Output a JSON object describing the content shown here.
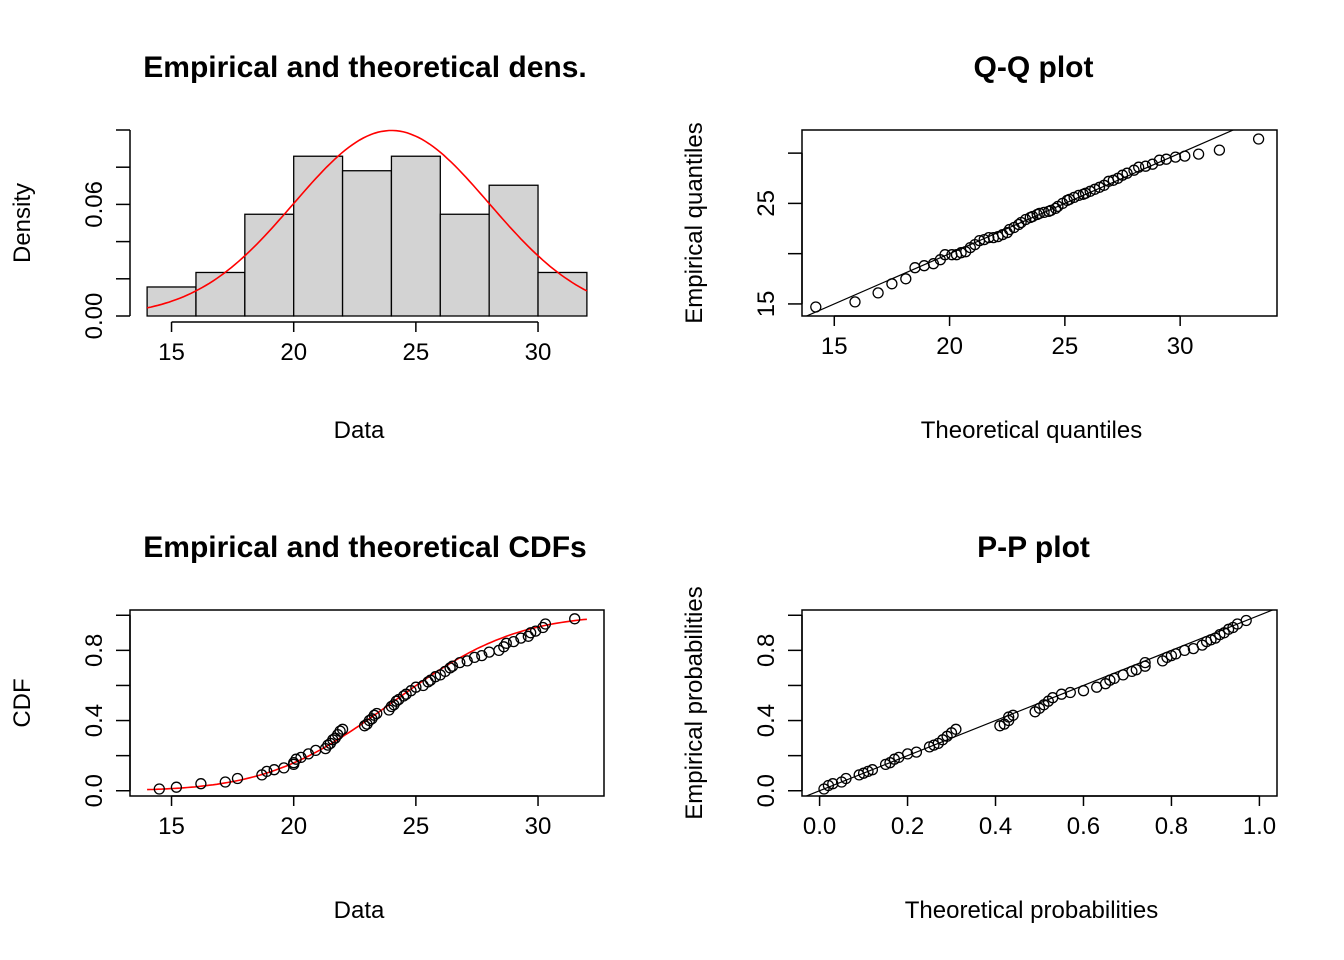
{
  "figure": {
    "title": "",
    "layout": "2x2"
  },
  "chart_data": [
    {
      "id": "hist",
      "type": "bar",
      "title": "Empirical and theoretical dens.",
      "xlabel": "Data",
      "ylabel": "Density",
      "xlim": [
        13.3,
        32.7
      ],
      "ylim": [
        0,
        0.1
      ],
      "xticks": [
        "15",
        "20",
        "25",
        "30"
      ],
      "yticks": [
        "0.00",
        "0.06"
      ],
      "box": false,
      "bar_color": "#d3d3d3",
      "line_color": "#ff0000",
      "bins": [
        {
          "x0": 14,
          "x1": 16,
          "density": 0.0156
        },
        {
          "x0": 16,
          "x1": 18,
          "density": 0.0234
        },
        {
          "x0": 18,
          "x1": 20,
          "density": 0.0547
        },
        {
          "x0": 20,
          "x1": 22,
          "density": 0.0859
        },
        {
          "x0": 22,
          "x1": 24,
          "density": 0.0781
        },
        {
          "x0": 24,
          "x1": 26,
          "density": 0.0859
        },
        {
          "x0": 26,
          "x1": 28,
          "density": 0.0547
        },
        {
          "x0": 28,
          "x1": 30,
          "density": 0.0703
        },
        {
          "x0": 30,
          "x1": 32,
          "density": 0.0234
        }
      ],
      "density_curve": {
        "mean": 24.0,
        "sd": 4.0,
        "from": 14,
        "to": 32
      }
    },
    {
      "id": "qq",
      "type": "scatter",
      "title": "Q-Q plot",
      "xlabel": "Theoretical quantiles",
      "ylabel": "Empirical quantiles",
      "xlim": [
        13.6,
        34.2
      ],
      "ylim": [
        13.8,
        32.3
      ],
      "xticks": [
        "15",
        "20",
        "25",
        "30"
      ],
      "yticks": [
        "15",
        "25"
      ],
      "box": true,
      "reference_line": {
        "slope": 1,
        "intercept": 0
      },
      "points": [
        [
          14.2,
          14.7
        ],
        [
          15.9,
          15.2
        ],
        [
          16.9,
          16.1
        ],
        [
          17.5,
          17.0
        ],
        [
          18.1,
          17.5
        ],
        [
          18.5,
          18.6
        ],
        [
          18.9,
          18.8
        ],
        [
          19.3,
          19.0
        ],
        [
          19.6,
          19.4
        ],
        [
          19.8,
          19.9
        ],
        [
          20.1,
          19.9
        ],
        [
          20.3,
          19.9
        ],
        [
          20.5,
          20.1
        ],
        [
          20.7,
          20.2
        ],
        [
          20.9,
          20.6
        ],
        [
          21.1,
          20.9
        ],
        [
          21.3,
          21.3
        ],
        [
          21.5,
          21.4
        ],
        [
          21.7,
          21.6
        ],
        [
          21.9,
          21.6
        ],
        [
          22.1,
          21.7
        ],
        [
          22.3,
          21.9
        ],
        [
          22.5,
          22.1
        ],
        [
          22.6,
          22.4
        ],
        [
          22.8,
          22.6
        ],
        [
          23.0,
          22.9
        ],
        [
          23.1,
          23.1
        ],
        [
          23.3,
          23.4
        ],
        [
          23.5,
          23.6
        ],
        [
          23.6,
          23.7
        ],
        [
          23.8,
          23.9
        ],
        [
          23.9,
          24.0
        ],
        [
          24.1,
          24.1
        ],
        [
          24.3,
          24.2
        ],
        [
          24.4,
          24.3
        ],
        [
          24.6,
          24.5
        ],
        [
          24.7,
          24.7
        ],
        [
          24.9,
          25.0
        ],
        [
          25.1,
          25.3
        ],
        [
          25.2,
          25.4
        ],
        [
          25.4,
          25.6
        ],
        [
          25.6,
          25.8
        ],
        [
          25.8,
          25.9
        ],
        [
          25.9,
          26.0
        ],
        [
          26.1,
          26.2
        ],
        [
          26.3,
          26.4
        ],
        [
          26.5,
          26.6
        ],
        [
          26.7,
          26.8
        ],
        [
          26.9,
          27.2
        ],
        [
          27.1,
          27.3
        ],
        [
          27.3,
          27.5
        ],
        [
          27.5,
          27.8
        ],
        [
          27.7,
          28.0
        ],
        [
          28.0,
          28.3
        ],
        [
          28.2,
          28.6
        ],
        [
          28.5,
          28.7
        ],
        [
          28.8,
          28.9
        ],
        [
          29.1,
          29.3
        ],
        [
          29.4,
          29.4
        ],
        [
          29.8,
          29.6
        ],
        [
          30.2,
          29.7
        ],
        [
          30.8,
          29.9
        ],
        [
          31.7,
          30.3
        ],
        [
          33.4,
          31.4
        ]
      ]
    },
    {
      "id": "cdf",
      "type": "line",
      "title": "Empirical and theoretical CDFs",
      "xlabel": "Data",
      "ylabel": "CDF",
      "xlim": [
        13.3,
        32.7
      ],
      "ylim": [
        -0.03,
        1.03
      ],
      "xticks": [
        "15",
        "20",
        "25",
        "30"
      ],
      "yticks": [
        "0.0",
        "0.4",
        "0.8"
      ],
      "box": true,
      "line_color": "#ff0000",
      "theoretical": {
        "mean": 24.0,
        "sd": 4.0,
        "from": 14,
        "to": 32
      },
      "points": [
        [
          14.5,
          0.01
        ],
        [
          15.2,
          0.02
        ],
        [
          16.2,
          0.04
        ],
        [
          17.2,
          0.05
        ],
        [
          17.7,
          0.07
        ],
        [
          18.7,
          0.09
        ],
        [
          18.9,
          0.11
        ],
        [
          19.2,
          0.12
        ],
        [
          19.6,
          0.13
        ],
        [
          20.0,
          0.15
        ],
        [
          20.0,
          0.16
        ],
        [
          20.1,
          0.18
        ],
        [
          20.3,
          0.19
        ],
        [
          20.6,
          0.21
        ],
        [
          20.9,
          0.23
        ],
        [
          21.3,
          0.24
        ],
        [
          21.4,
          0.26
        ],
        [
          21.5,
          0.27
        ],
        [
          21.6,
          0.29
        ],
        [
          21.7,
          0.3
        ],
        [
          21.8,
          0.32
        ],
        [
          21.9,
          0.34
        ],
        [
          22.0,
          0.35
        ],
        [
          22.9,
          0.37
        ],
        [
          23.0,
          0.38
        ],
        [
          23.1,
          0.4
        ],
        [
          23.2,
          0.41
        ],
        [
          23.3,
          0.43
        ],
        [
          23.4,
          0.44
        ],
        [
          23.9,
          0.46
        ],
        [
          24.0,
          0.48
        ],
        [
          24.1,
          0.49
        ],
        [
          24.2,
          0.51
        ],
        [
          24.3,
          0.52
        ],
        [
          24.5,
          0.54
        ],
        [
          24.6,
          0.55
        ],
        [
          24.8,
          0.57
        ],
        [
          25.0,
          0.59
        ],
        [
          25.3,
          0.6
        ],
        [
          25.5,
          0.62
        ],
        [
          25.6,
          0.63
        ],
        [
          25.8,
          0.65
        ],
        [
          26.0,
          0.66
        ],
        [
          26.2,
          0.68
        ],
        [
          26.4,
          0.7
        ],
        [
          26.5,
          0.71
        ],
        [
          26.8,
          0.73
        ],
        [
          27.1,
          0.74
        ],
        [
          27.4,
          0.76
        ],
        [
          27.7,
          0.77
        ],
        [
          28.0,
          0.79
        ],
        [
          28.4,
          0.8
        ],
        [
          28.6,
          0.82
        ],
        [
          28.7,
          0.84
        ],
        [
          29.0,
          0.85
        ],
        [
          29.3,
          0.87
        ],
        [
          29.6,
          0.88
        ],
        [
          29.7,
          0.9
        ],
        [
          29.9,
          0.91
        ],
        [
          30.2,
          0.93
        ],
        [
          30.3,
          0.95
        ],
        [
          31.5,
          0.98
        ]
      ]
    },
    {
      "id": "pp",
      "type": "scatter",
      "title": "P-P plot",
      "xlabel": "Theoretical probabilities",
      "ylabel": "Empirical probabilities",
      "xlim": [
        -0.04,
        1.04
      ],
      "ylim": [
        -0.03,
        1.03
      ],
      "xticks": [
        "0.0",
        "0.2",
        "0.4",
        "0.6",
        "0.8",
        "1.0"
      ],
      "yticks": [
        "0.0",
        "0.4",
        "0.8"
      ],
      "box": true,
      "reference_line": {
        "slope": 1,
        "intercept": 0
      },
      "points": [
        [
          0.01,
          0.01
        ],
        [
          0.02,
          0.03
        ],
        [
          0.03,
          0.04
        ],
        [
          0.05,
          0.05
        ],
        [
          0.06,
          0.07
        ],
        [
          0.09,
          0.09
        ],
        [
          0.1,
          0.1
        ],
        [
          0.11,
          0.11
        ],
        [
          0.12,
          0.12
        ],
        [
          0.15,
          0.15
        ],
        [
          0.16,
          0.16
        ],
        [
          0.17,
          0.18
        ],
        [
          0.18,
          0.19
        ],
        [
          0.2,
          0.21
        ],
        [
          0.22,
          0.22
        ],
        [
          0.25,
          0.25
        ],
        [
          0.26,
          0.26
        ],
        [
          0.27,
          0.27
        ],
        [
          0.28,
          0.29
        ],
        [
          0.29,
          0.31
        ],
        [
          0.3,
          0.33
        ],
        [
          0.31,
          0.35
        ],
        [
          0.41,
          0.37
        ],
        [
          0.42,
          0.38
        ],
        [
          0.43,
          0.4
        ],
        [
          0.43,
          0.42
        ],
        [
          0.44,
          0.43
        ],
        [
          0.49,
          0.45
        ],
        [
          0.5,
          0.47
        ],
        [
          0.51,
          0.49
        ],
        [
          0.52,
          0.51
        ],
        [
          0.53,
          0.53
        ],
        [
          0.55,
          0.55
        ],
        [
          0.57,
          0.56
        ],
        [
          0.6,
          0.57
        ],
        [
          0.63,
          0.59
        ],
        [
          0.65,
          0.61
        ],
        [
          0.66,
          0.63
        ],
        [
          0.67,
          0.64
        ],
        [
          0.69,
          0.66
        ],
        [
          0.71,
          0.68
        ],
        [
          0.72,
          0.69
        ],
        [
          0.74,
          0.71
        ],
        [
          0.74,
          0.73
        ],
        [
          0.78,
          0.74
        ],
        [
          0.79,
          0.76
        ],
        [
          0.8,
          0.77
        ],
        [
          0.81,
          0.78
        ],
        [
          0.83,
          0.8
        ],
        [
          0.85,
          0.81
        ],
        [
          0.87,
          0.83
        ],
        [
          0.88,
          0.85
        ],
        [
          0.89,
          0.86
        ],
        [
          0.9,
          0.87
        ],
        [
          0.91,
          0.89
        ],
        [
          0.92,
          0.9
        ],
        [
          0.93,
          0.92
        ],
        [
          0.94,
          0.93
        ],
        [
          0.95,
          0.95
        ],
        [
          0.97,
          0.97
        ]
      ]
    }
  ]
}
